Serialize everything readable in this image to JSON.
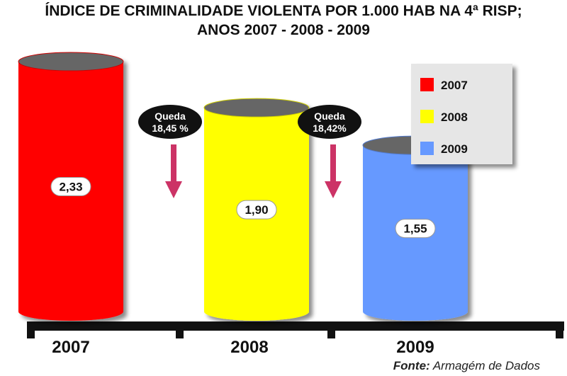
{
  "chart_data": {
    "type": "bar",
    "title": "ÍNDICE DE CRIMINALIDADE VIOLENTA POR 1.000 HAB NA 4ª RISP;",
    "subtitle": "ANOS 2007 - 2008 - 2009",
    "categories": [
      "2007",
      "2008",
      "2009"
    ],
    "value_labels": [
      "2,33",
      "1,90",
      "1,55"
    ],
    "series": [
      {
        "values": [
          2.33,
          1.9,
          1.55
        ]
      }
    ],
    "bar_colors": [
      "#ff0000",
      "#ffff00",
      "#6699ff"
    ],
    "legend": {
      "placement": "top-right",
      "entries": [
        {
          "label": "2007",
          "color": "#ff0000"
        },
        {
          "label": "2008",
          "color": "#ffff00"
        },
        {
          "label": "2009",
          "color": "#6699ff"
        }
      ]
    },
    "annotations": [
      {
        "line1": "Queda",
        "line2": "18,45 %"
      },
      {
        "line1": "Queda",
        "line2": "18,42%"
      }
    ],
    "ylim": [
      0,
      2.33
    ],
    "grid": false,
    "source_label": "Fonte:",
    "source_text": "Armagém de Dados"
  }
}
